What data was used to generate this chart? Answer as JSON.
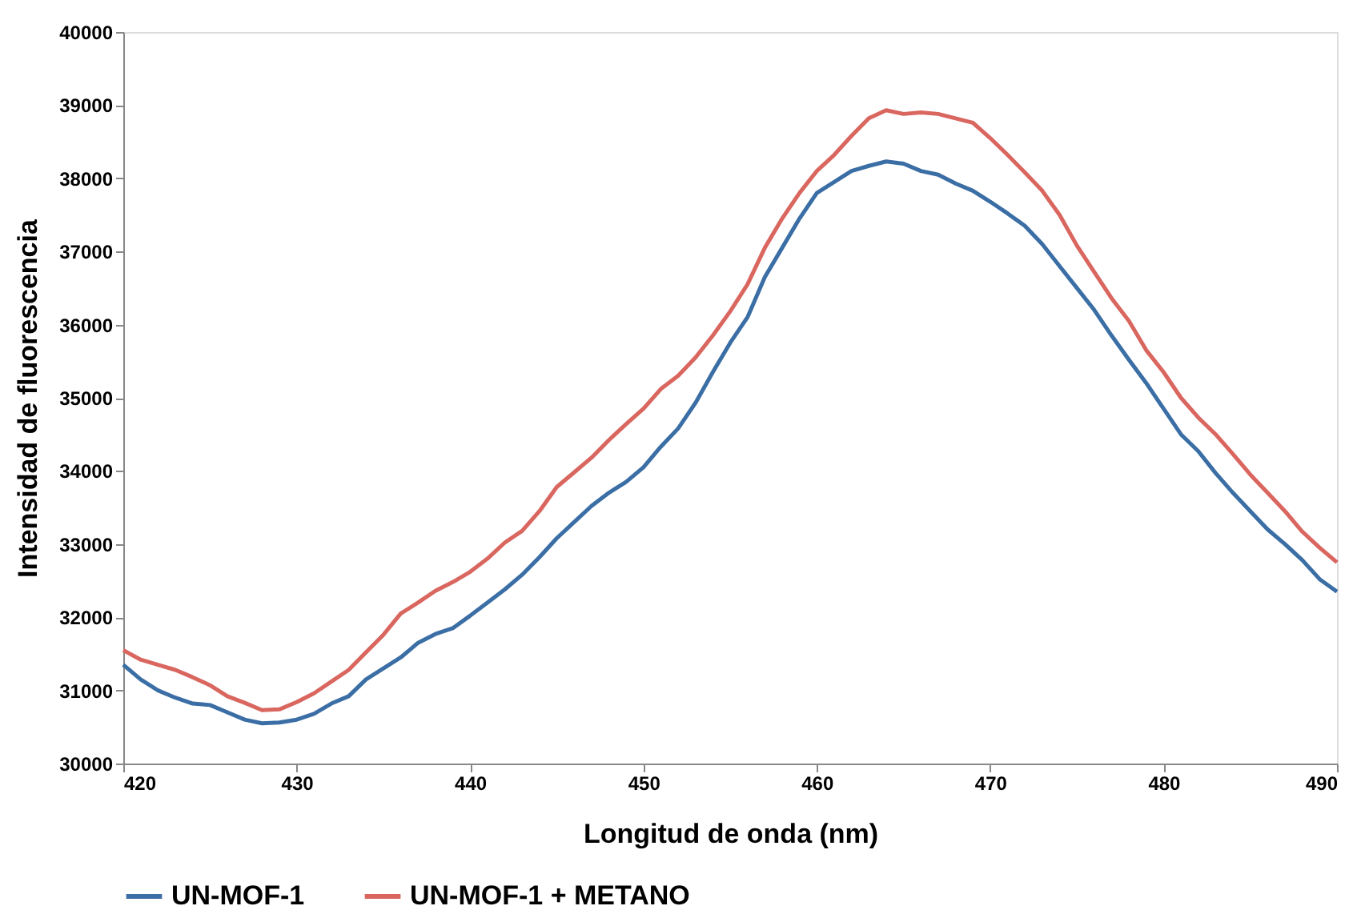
{
  "chart_data": {
    "type": "line",
    "xlabel": "Longitud de onda (nm)",
    "ylabel": "Intensidad de fluorescencia",
    "x": [
      420,
      421,
      422,
      423,
      424,
      425,
      426,
      427,
      428,
      429,
      430,
      431,
      432,
      433,
      434,
      435,
      436,
      437,
      438,
      439,
      440,
      441,
      442,
      443,
      444,
      445,
      446,
      447,
      448,
      449,
      450,
      451,
      452,
      453,
      454,
      455,
      456,
      457,
      458,
      459,
      460,
      461,
      462,
      463,
      464,
      465,
      466,
      467,
      468,
      469,
      470,
      471,
      472,
      473,
      474,
      475,
      476,
      477,
      478,
      479,
      480,
      481,
      482,
      483,
      484,
      485,
      486,
      487,
      488,
      489,
      490
    ],
    "series": [
      {
        "name": "UN-MOF-1",
        "color": "#3a6ea5",
        "values": [
          31350,
          31150,
          31000,
          30900,
          30820,
          30800,
          30700,
          30600,
          30550,
          30560,
          30600,
          30680,
          30820,
          30920,
          31150,
          31300,
          31450,
          31650,
          31770,
          31850,
          32020,
          32200,
          32380,
          32580,
          32820,
          33080,
          33300,
          33520,
          33700,
          33850,
          34050,
          34330,
          34580,
          34930,
          35350,
          35750,
          36100,
          36650,
          37050,
          37450,
          37800,
          37950,
          38100,
          38170,
          38230,
          38200,
          38100,
          38050,
          37930,
          37830,
          37680,
          37520,
          37350,
          37100,
          36800,
          36500,
          36200,
          35850,
          35520,
          35200,
          34850,
          34500,
          34270,
          33970,
          33700,
          33450,
          33200,
          33000,
          32780,
          32520,
          32350
        ]
      },
      {
        "name": "UN-MOF-1 + METANO",
        "color": "#d9665f",
        "values": [
          31550,
          31420,
          31350,
          31280,
          31180,
          31070,
          30920,
          30830,
          30730,
          30740,
          30840,
          30960,
          31120,
          31280,
          31520,
          31760,
          32050,
          32200,
          32360,
          32480,
          32620,
          32800,
          33020,
          33180,
          33450,
          33780,
          33980,
          34180,
          34420,
          34640,
          34850,
          35120,
          35300,
          35550,
          35850,
          36180,
          36550,
          37050,
          37450,
          37800,
          38100,
          38320,
          38580,
          38820,
          38930,
          38880,
          38900,
          38880,
          38820,
          38760,
          38550,
          38320,
          38080,
          37830,
          37500,
          37080,
          36720,
          36360,
          36050,
          35650,
          35350,
          35000,
          34730,
          34500,
          34230,
          33950,
          33700,
          33450,
          33170,
          32950,
          32750
        ]
      }
    ],
    "xlim": [
      420,
      490
    ],
    "xticks": [
      420,
      430,
      440,
      450,
      460,
      470,
      480,
      490
    ],
    "ylim": [
      30000,
      40000
    ],
    "yticks": [
      30000,
      31000,
      32000,
      33000,
      34000,
      35000,
      36000,
      37000,
      38000,
      39000,
      40000
    ],
    "grid": false,
    "legend": "bottom",
    "marker": "none",
    "line_style": "solid"
  }
}
